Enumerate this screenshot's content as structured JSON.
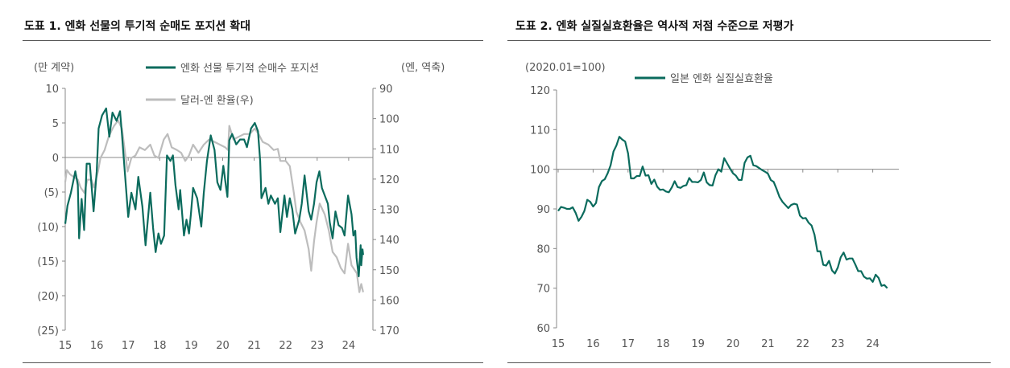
{
  "panels": [
    {
      "title": "도표 1. 엔화 선물의 투기적 순매도 포지션 확대"
    },
    {
      "title": "도표 2. 엔화 실질실효환율은 역사적 저점 수준으로 저평가"
    }
  ],
  "colors": {
    "green": "#0b6b5d",
    "gray": "#bdbdbd",
    "axis": "#888888"
  },
  "chart_data": [
    {
      "type": "line",
      "left_unit": "(만 계약)",
      "right_unit": "(엔, 역축)",
      "ylim_left": [
        -25,
        10
      ],
      "ylim_right": [
        170,
        90
      ],
      "right_axis_inverted": true,
      "xlim": [
        15,
        24.6
      ],
      "x_ticks": [
        "15",
        "16",
        "17",
        "18",
        "19",
        "20",
        "21",
        "22",
        "23",
        "24"
      ],
      "y_left_ticks": [
        "10",
        "5",
        "0",
        "(5)",
        "(10)",
        "(15)",
        "(20)",
        "(25)"
      ],
      "y_right_ticks": [
        "90",
        "100",
        "110",
        "120",
        "130",
        "140",
        "150",
        "160",
        "170"
      ],
      "legend_placement": "top",
      "series": [
        {
          "name": "엔화 선물 투기적 순매수 포지션",
          "axis": "left",
          "color": "#0b6b5d",
          "points": [
            [
              15.0,
              -9.6
            ],
            [
              15.07,
              -7
            ],
            [
              15.18,
              -5.1
            ],
            [
              15.32,
              -2
            ],
            [
              15.4,
              -4
            ],
            [
              15.44,
              -11.7
            ],
            [
              15.52,
              -6
            ],
            [
              15.6,
              -10.5
            ],
            [
              15.68,
              -0.9
            ],
            [
              15.78,
              -0.9
            ],
            [
              15.9,
              -7.8
            ],
            [
              16.0,
              -2
            ],
            [
              16.06,
              4.2
            ],
            [
              16.17,
              6.1
            ],
            [
              16.3,
              7.1
            ],
            [
              16.4,
              3
            ],
            [
              16.5,
              6.5
            ],
            [
              16.63,
              5.3
            ],
            [
              16.74,
              6.7
            ],
            [
              16.8,
              3.4
            ],
            [
              16.93,
              -4.4
            ],
            [
              17.0,
              -8.6
            ],
            [
              17.1,
              -5.1
            ],
            [
              17.23,
              -7.5
            ],
            [
              17.32,
              -2.8
            ],
            [
              17.45,
              -7.1
            ],
            [
              17.55,
              -12.7
            ],
            [
              17.7,
              -5.1
            ],
            [
              17.79,
              -10.2
            ],
            [
              17.87,
              -13.7
            ],
            [
              17.96,
              -11
            ],
            [
              18.04,
              -12.5
            ],
            [
              18.14,
              -11.3
            ],
            [
              18.23,
              0.3
            ],
            [
              18.34,
              -0.5
            ],
            [
              18.42,
              0.3
            ],
            [
              18.5,
              -4
            ],
            [
              18.6,
              -7.5
            ],
            [
              18.65,
              -4.7
            ],
            [
              18.77,
              -11.3
            ],
            [
              18.85,
              -9
            ],
            [
              18.93,
              -11
            ],
            [
              18.99,
              -8.2
            ],
            [
              19.06,
              -4.4
            ],
            [
              19.19,
              -5.9
            ],
            [
              19.32,
              -10
            ],
            [
              19.4,
              -5.1
            ],
            [
              19.5,
              -0.5
            ],
            [
              19.62,
              3.2
            ],
            [
              19.74,
              1.1
            ],
            [
              19.83,
              -3.6
            ],
            [
              19.93,
              -4.7
            ],
            [
              20.02,
              -1.2
            ],
            [
              20.11,
              -4.4
            ],
            [
              20.15,
              -5.7
            ],
            [
              20.21,
              2.5
            ],
            [
              20.3,
              3.4
            ],
            [
              20.43,
              1.9
            ],
            [
              20.55,
              2.6
            ],
            [
              20.68,
              2.6
            ],
            [
              20.77,
              1.5
            ],
            [
              20.9,
              4.2
            ],
            [
              21.02,
              5
            ],
            [
              21.12,
              3.8
            ],
            [
              21.19,
              -0.5
            ],
            [
              21.23,
              -5.9
            ],
            [
              21.36,
              -4.4
            ],
            [
              21.45,
              -6.7
            ],
            [
              21.53,
              -5.5
            ],
            [
              21.66,
              -6.7
            ],
            [
              21.75,
              -5.9
            ],
            [
              21.83,
              -10.8
            ],
            [
              21.96,
              -5.5
            ],
            [
              22.04,
              -8.6
            ],
            [
              22.13,
              -5.9
            ],
            [
              22.21,
              -7.5
            ],
            [
              22.3,
              -11
            ],
            [
              22.43,
              -9
            ],
            [
              22.51,
              -6.7
            ],
            [
              22.6,
              -2.6
            ],
            [
              22.73,
              -7.8
            ],
            [
              22.81,
              -9
            ],
            [
              22.9,
              -6.7
            ],
            [
              22.98,
              -3.6
            ],
            [
              23.07,
              -2
            ],
            [
              23.15,
              -4.4
            ],
            [
              23.24,
              -5.5
            ],
            [
              23.34,
              -6.7
            ],
            [
              23.4,
              -9.4
            ],
            [
              23.49,
              -11.7
            ],
            [
              23.58,
              -7.8
            ],
            [
              23.68,
              -9.8
            ],
            [
              23.79,
              -10.2
            ],
            [
              23.87,
              -11.3
            ],
            [
              23.98,
              -5.5
            ],
            [
              24.09,
              -8.2
            ],
            [
              24.15,
              -11.3
            ],
            [
              24.21,
              -10.6
            ],
            [
              24.25,
              -14.5
            ],
            [
              24.32,
              -17.2
            ],
            [
              24.38,
              -12.7
            ],
            [
              24.4,
              -15.6
            ],
            [
              24.44,
              -13.3
            ],
            [
              24.46,
              -14.1
            ]
          ]
        },
        {
          "name": "달러-엔 환율(우)",
          "axis": "right",
          "color": "#bdbdbd",
          "points": [
            [
              15.0,
              121
            ],
            [
              15.05,
              117
            ],
            [
              15.15,
              118.4
            ],
            [
              15.27,
              119.3
            ],
            [
              15.4,
              120.2
            ],
            [
              15.49,
              122.8
            ],
            [
              15.61,
              124.6
            ],
            [
              15.7,
              120.2
            ],
            [
              15.83,
              120.2
            ],
            [
              15.91,
              122.8
            ],
            [
              16.04,
              117.5
            ],
            [
              16.12,
              113
            ],
            [
              16.25,
              110.4
            ],
            [
              16.38,
              106
            ],
            [
              16.46,
              104.2
            ],
            [
              16.55,
              102.4
            ],
            [
              16.68,
              100.6
            ],
            [
              16.8,
              103.3
            ],
            [
              16.89,
              110.4
            ],
            [
              16.98,
              117.5
            ],
            [
              17.1,
              113
            ],
            [
              17.23,
              112.2
            ],
            [
              17.36,
              109.5
            ],
            [
              17.53,
              110.4
            ],
            [
              17.7,
              108.6
            ],
            [
              17.83,
              112.2
            ],
            [
              17.96,
              113
            ],
            [
              18.13,
              106.9
            ],
            [
              18.25,
              105.1
            ],
            [
              18.38,
              109.5
            ],
            [
              18.55,
              110.4
            ],
            [
              18.68,
              111.3
            ],
            [
              18.81,
              114
            ],
            [
              18.93,
              112.2
            ],
            [
              19.06,
              108.6
            ],
            [
              19.23,
              111.3
            ],
            [
              19.4,
              108.6
            ],
            [
              19.57,
              106.9
            ],
            [
              19.74,
              107.7
            ],
            [
              19.91,
              108.6
            ],
            [
              20.08,
              109.5
            ],
            [
              20.17,
              110.4
            ],
            [
              20.21,
              102.4
            ],
            [
              20.34,
              106.9
            ],
            [
              20.51,
              106
            ],
            [
              20.68,
              105.1
            ],
            [
              20.85,
              105.1
            ],
            [
              21.02,
              103.3
            ],
            [
              21.14,
              105.1
            ],
            [
              21.27,
              107.7
            ],
            [
              21.45,
              108.6
            ],
            [
              21.62,
              110.4
            ],
            [
              21.75,
              110
            ],
            [
              21.83,
              114
            ],
            [
              22.0,
              114
            ],
            [
              22.13,
              115.7
            ],
            [
              22.26,
              124.6
            ],
            [
              22.34,
              130.8
            ],
            [
              22.47,
              134.3
            ],
            [
              22.6,
              137
            ],
            [
              22.73,
              143.2
            ],
            [
              22.81,
              150.3
            ],
            [
              22.9,
              140.6
            ],
            [
              22.98,
              134.3
            ],
            [
              23.08,
              128.1
            ],
            [
              23.24,
              131.7
            ],
            [
              23.37,
              137
            ],
            [
              23.49,
              144.1
            ],
            [
              23.62,
              145.9
            ],
            [
              23.75,
              149.4
            ],
            [
              23.87,
              151.2
            ],
            [
              23.98,
              141.4
            ],
            [
              24.09,
              148.5
            ],
            [
              24.26,
              151.2
            ],
            [
              24.34,
              157.4
            ],
            [
              24.4,
              154.7
            ],
            [
              24.46,
              157.4
            ]
          ]
        }
      ]
    },
    {
      "type": "line",
      "unit": "(2020.01=100)",
      "ylim": [
        60,
        120
      ],
      "xlim": [
        15,
        24.6
      ],
      "x_ticks": [
        "15",
        "16",
        "17",
        "18",
        "19",
        "20",
        "21",
        "22",
        "23",
        "24"
      ],
      "y_ticks": [
        "120",
        "110",
        "100",
        "90",
        "80",
        "70",
        "60"
      ],
      "reference_line": 100,
      "legend_placement": "top",
      "series": [
        {
          "name": "일본 엔화 실질실효환율",
          "color": "#0b6b5d",
          "start": "2015.01",
          "frequency": "monthly",
          "values": [
            89.5,
            90.5,
            90.3,
            90,
            90,
            90.4,
            89,
            87,
            88,
            89.5,
            92.3,
            91.8,
            90.6,
            91.5,
            95.5,
            97,
            97.5,
            99,
            101,
            104.5,
            106,
            108.2,
            107.5,
            107,
            104,
            97.7,
            97.7,
            98.3,
            98.3,
            100.7,
            98.4,
            98.5,
            96.3,
            97.4,
            95.6,
            94.8,
            94.9,
            94.4,
            94.2,
            95.4,
            97,
            95.5,
            95.3,
            95.8,
            96,
            97.8,
            96.8,
            96.8,
            96.7,
            97.3,
            99.2,
            96.7,
            96,
            95.9,
            98.5,
            100,
            99.4,
            102.8,
            101.5,
            100.2,
            99,
            98.4,
            97.3,
            97.3,
            101.6,
            103,
            103.4,
            101,
            100.8,
            100.3,
            99.8,
            99.4,
            98.9,
            97.3,
            96.8,
            95,
            93,
            91.8,
            91,
            90.2,
            91,
            91.3,
            91.1,
            88.3,
            87.6,
            87.7,
            86.5,
            85.8,
            83.5,
            79.3,
            79.3,
            75.9,
            75.7,
            76.9,
            74.5,
            73.7,
            75.2,
            77.8,
            79,
            77.2,
            77.5,
            77.5,
            76,
            74.3,
            74.3,
            72.9,
            72.4,
            72.5,
            71.6,
            73.4,
            72.6,
            70.6,
            70.8,
            70
          ]
        }
      ]
    }
  ]
}
